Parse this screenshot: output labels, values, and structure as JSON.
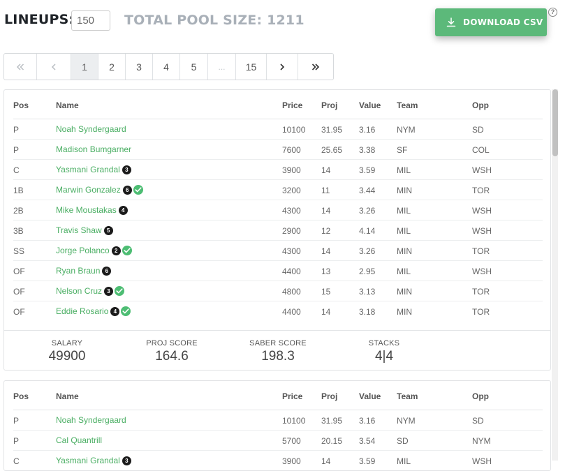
{
  "header": {
    "lineups_label": "LINEUPS:",
    "lineups_value": "150",
    "pool_label": "TOTAL POOL SIZE: 1211",
    "download_label": "DOWNLOAD CSV",
    "help_glyph": "?",
    "download_color": "#5cb97a"
  },
  "pagination": {
    "first": "«",
    "prev": "‹",
    "pages": [
      "1",
      "2",
      "3",
      "4",
      "5",
      "...",
      "15"
    ],
    "next": "›",
    "last": "»",
    "active_page": "1"
  },
  "columns": {
    "pos": "Pos",
    "name": "Name",
    "price": "Price",
    "proj": "Proj",
    "value": "Value",
    "team": "Team",
    "opp": "Opp"
  },
  "lineups": [
    {
      "rows": [
        {
          "pos": "P",
          "name": "Noah Syndergaard",
          "price": "10100",
          "proj": "31.95",
          "value": "3.16",
          "team": "NYM",
          "opp": "SD",
          "badge": "",
          "check": false
        },
        {
          "pos": "P",
          "name": "Madison Bumgarner",
          "price": "7600",
          "proj": "25.65",
          "value": "3.38",
          "team": "SF",
          "opp": "COL",
          "badge": "",
          "check": false
        },
        {
          "pos": "C",
          "name": "Yasmani Grandal",
          "price": "3900",
          "proj": "14",
          "value": "3.59",
          "team": "MIL",
          "opp": "WSH",
          "badge": "3",
          "check": false
        },
        {
          "pos": "1B",
          "name": "Marwin Gonzalez",
          "price": "3200",
          "proj": "11",
          "value": "3.44",
          "team": "MIN",
          "opp": "TOR",
          "badge": "6",
          "check": true
        },
        {
          "pos": "2B",
          "name": "Mike Moustakas",
          "price": "4300",
          "proj": "14",
          "value": "3.26",
          "team": "MIL",
          "opp": "WSH",
          "badge": "4",
          "check": false
        },
        {
          "pos": "3B",
          "name": "Travis Shaw",
          "price": "2900",
          "proj": "12",
          "value": "4.14",
          "team": "MIL",
          "opp": "WSH",
          "badge": "5",
          "check": false
        },
        {
          "pos": "SS",
          "name": "Jorge Polanco",
          "price": "4300",
          "proj": "14",
          "value": "3.26",
          "team": "MIN",
          "opp": "TOR",
          "badge": "2",
          "check": true
        },
        {
          "pos": "OF",
          "name": "Ryan Braun",
          "price": "4400",
          "proj": "13",
          "value": "2.95",
          "team": "MIL",
          "opp": "WSH",
          "badge": "6",
          "check": false
        },
        {
          "pos": "OF",
          "name": "Nelson Cruz",
          "price": "4800",
          "proj": "15",
          "value": "3.13",
          "team": "MIN",
          "opp": "TOR",
          "badge": "3",
          "check": true
        },
        {
          "pos": "OF",
          "name": "Eddie Rosario",
          "price": "4400",
          "proj": "14",
          "value": "3.18",
          "team": "MIN",
          "opp": "TOR",
          "badge": "4",
          "check": true
        }
      ],
      "summary": {
        "salary_label": "SALARY",
        "salary": "49900",
        "proj_label": "PROJ SCORE",
        "proj": "164.6",
        "saber_label": "SABER SCORE",
        "saber": "198.3",
        "stacks_label": "STACKS",
        "stacks": "4|4"
      }
    },
    {
      "rows": [
        {
          "pos": "P",
          "name": "Noah Syndergaard",
          "price": "10100",
          "proj": "31.95",
          "value": "3.16",
          "team": "NYM",
          "opp": "SD",
          "badge": "",
          "check": false
        },
        {
          "pos": "P",
          "name": "Cal Quantrill",
          "price": "5700",
          "proj": "20.15",
          "value": "3.54",
          "team": "SD",
          "opp": "NYM",
          "badge": "",
          "check": false
        },
        {
          "pos": "C",
          "name": "Yasmani Grandal",
          "price": "3900",
          "proj": "14",
          "value": "3.59",
          "team": "MIL",
          "opp": "WSH",
          "badge": "3",
          "check": false
        }
      ]
    }
  ]
}
